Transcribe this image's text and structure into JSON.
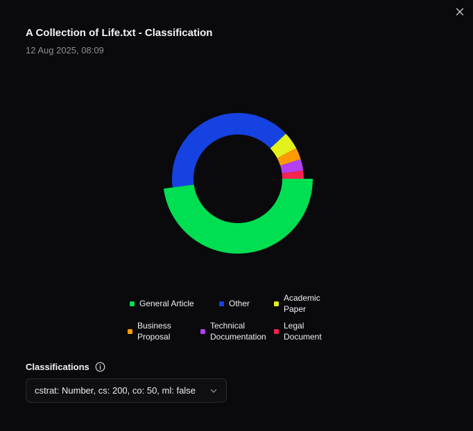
{
  "dialog": {
    "title": "A Collection of Life.txt - Classification",
    "timestamp": "12 Aug 2025, 08:09",
    "close_icon": "close-icon"
  },
  "chart_data": {
    "type": "pie",
    "style": "donut",
    "categories": [
      "General Article",
      "Other",
      "Academic Paper",
      "Business Proposal",
      "Technical Documentation",
      "Legal Document"
    ],
    "values": [
      47.9,
      40.1,
      4.3,
      2.9,
      2.8,
      2.0
    ],
    "colors": [
      "#00df52",
      "#1642e2",
      "#e2f21a",
      "#ff9b00",
      "#b340f2",
      "#f4244f"
    ],
    "legend_position": "bottom"
  },
  "classifications": {
    "label": "Classifications",
    "info_icon": "info-icon",
    "selected": "cstrat: Number, cs: 200, co: 50, ml: false",
    "chevron_icon": "chevron-down-icon"
  }
}
